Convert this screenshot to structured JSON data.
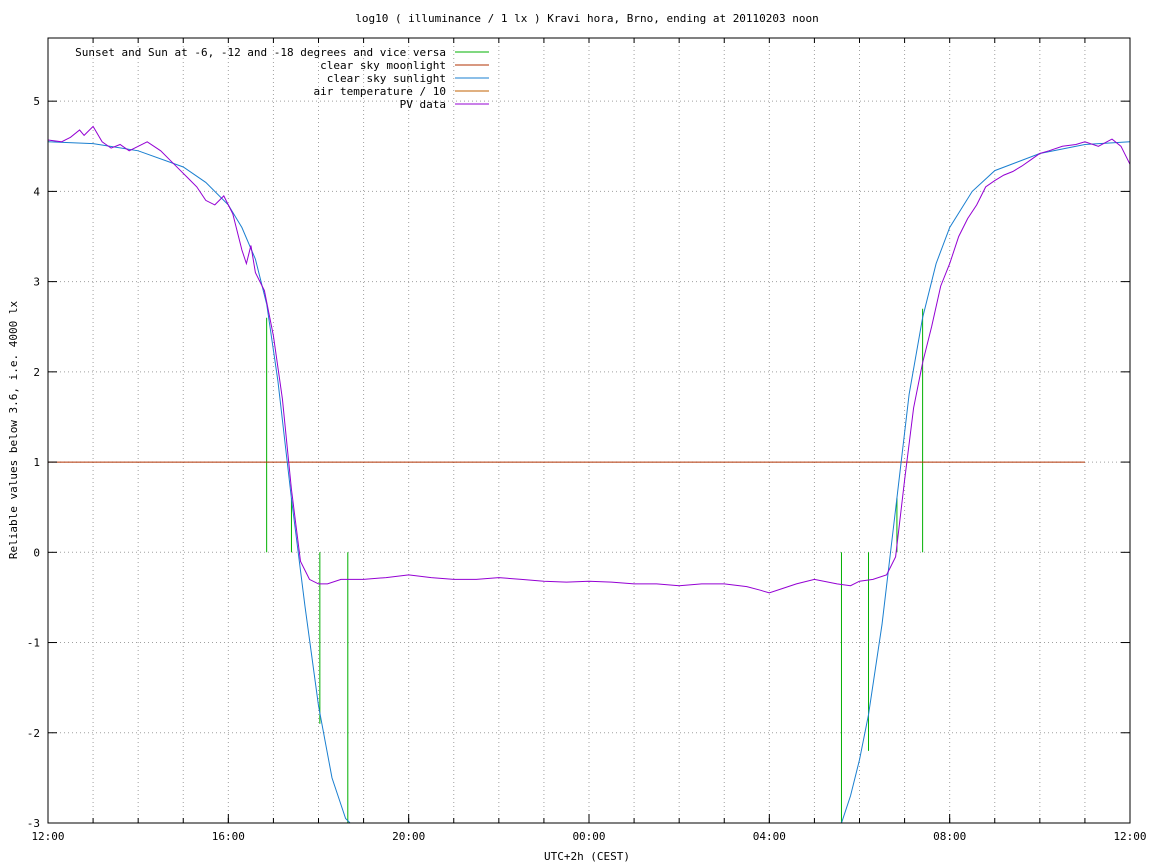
{
  "chart_data": {
    "type": "line",
    "title": "log10 ( illuminance / 1 lx ) Kravi hora, Brno, ending at 20110203 noon",
    "xlabel": "UTC+2h (CEST)",
    "ylabel": "Reliable values below 3.6, i.e. 4000 lx",
    "xlim": [
      12,
      36
    ],
    "ylim": [
      -3,
      5.7
    ],
    "x_ticks": [
      {
        "value": 12,
        "label": "12:00"
      },
      {
        "value": 16,
        "label": "16:00"
      },
      {
        "value": 20,
        "label": "20:00"
      },
      {
        "value": 24,
        "label": "00:00"
      },
      {
        "value": 28,
        "label": "04:00"
      },
      {
        "value": 32,
        "label": "08:00"
      },
      {
        "value": 36,
        "label": "12:00"
      }
    ],
    "y_ticks": [
      {
        "value": 5,
        "label": "5"
      },
      {
        "value": 4,
        "label": "4"
      },
      {
        "value": 3,
        "label": "3"
      },
      {
        "value": 2,
        "label": "2"
      },
      {
        "value": 1,
        "label": "1"
      },
      {
        "value": 0,
        "label": "0"
      },
      {
        "value": -1,
        "label": "-1"
      },
      {
        "value": -2,
        "label": "-2"
      },
      {
        "value": -3,
        "label": "-3"
      }
    ],
    "grid": true,
    "legend_position": "top-left",
    "series": [
      {
        "name": "Sunset and Sun at -6, -12 and -18 degrees and vice versa",
        "color": "#00b000",
        "style": "vlines",
        "lines": [
          {
            "x": 16.85,
            "y_top": 2.6,
            "y_bottom": 0
          },
          {
            "x": 17.4,
            "y_top": 0.6,
            "y_bottom": 0
          },
          {
            "x": 18.03,
            "y_top": -1.9,
            "y_bottom": 0
          },
          {
            "x": 18.65,
            "y_top": -3,
            "y_bottom": 0
          },
          {
            "x": 29.6,
            "y_top": -3,
            "y_bottom": 0
          },
          {
            "x": 30.2,
            "y_top": -2.2,
            "y_bottom": 0
          },
          {
            "x": 30.83,
            "y_top": 0.6,
            "y_bottom": 0
          },
          {
            "x": 31.4,
            "y_top": 2.7,
            "y_bottom": 0
          }
        ]
      },
      {
        "name": "clear sky moonlight",
        "color": "#b03000",
        "x": [
          12,
          35.0
        ],
        "y": [
          1,
          1
        ]
      },
      {
        "name": "clear sky sunlight",
        "color": "#1a7fd0",
        "x": [
          12.0,
          13.0,
          14.0,
          15.0,
          15.5,
          16.0,
          16.3,
          16.6,
          16.85,
          17.1,
          17.4,
          17.7,
          18.0,
          18.3,
          18.6,
          18.7,
          29.6,
          29.8,
          30.0,
          30.2,
          30.5,
          30.83,
          31.1,
          31.4,
          31.7,
          32.0,
          32.5,
          33.0,
          34.0,
          35.0,
          36.0
        ],
        "y": [
          4.55,
          4.53,
          4.45,
          4.27,
          4.1,
          3.85,
          3.6,
          3.25,
          2.75,
          1.9,
          0.6,
          -0.6,
          -1.7,
          -2.5,
          -2.95,
          -3.05,
          -3.05,
          -2.7,
          -2.3,
          -1.8,
          -0.8,
          0.6,
          1.75,
          2.6,
          3.2,
          3.6,
          4.0,
          4.23,
          4.42,
          4.52,
          4.55
        ]
      },
      {
        "name": "air temperature / 10",
        "color": "#c06000",
        "x": [],
        "y": []
      },
      {
        "name": "PV data",
        "color": "#9400d3",
        "x": [
          12.0,
          12.3,
          12.5,
          12.7,
          12.8,
          13.0,
          13.2,
          13.4,
          13.6,
          13.8,
          14.0,
          14.2,
          14.5,
          14.7,
          14.9,
          15.1,
          15.3,
          15.5,
          15.7,
          15.9,
          16.1,
          16.3,
          16.4,
          16.5,
          16.6,
          16.8,
          17.0,
          17.2,
          17.4,
          17.6,
          17.8,
          18.0,
          18.2,
          18.5,
          19.0,
          19.5,
          20.0,
          20.5,
          21.0,
          21.5,
          22.0,
          22.5,
          23.0,
          23.5,
          24.0,
          24.5,
          25.0,
          25.5,
          26.0,
          26.5,
          27.0,
          27.5,
          27.8,
          28.0,
          28.3,
          28.6,
          29.0,
          29.5,
          29.8,
          30.0,
          30.3,
          30.6,
          30.8,
          31.0,
          31.2,
          31.4,
          31.6,
          31.8,
          32.0,
          32.2,
          32.4,
          32.6,
          32.8,
          33.0,
          33.2,
          33.4,
          33.6,
          33.8,
          34.0,
          34.2,
          34.5,
          34.8,
          35.0,
          35.3,
          35.6,
          35.8,
          36.0
        ],
        "y": [
          4.57,
          4.55,
          4.6,
          4.68,
          4.62,
          4.72,
          4.55,
          4.48,
          4.52,
          4.45,
          4.5,
          4.55,
          4.45,
          4.35,
          4.25,
          4.15,
          4.05,
          3.9,
          3.85,
          3.95,
          3.75,
          3.35,
          3.2,
          3.4,
          3.1,
          2.9,
          2.4,
          1.7,
          0.7,
          -0.1,
          -0.3,
          -0.35,
          -0.35,
          -0.3,
          -0.3,
          -0.28,
          -0.25,
          -0.28,
          -0.3,
          -0.3,
          -0.28,
          -0.3,
          -0.32,
          -0.33,
          -0.32,
          -0.33,
          -0.35,
          -0.35,
          -0.37,
          -0.35,
          -0.35,
          -0.38,
          -0.42,
          -0.45,
          -0.4,
          -0.35,
          -0.3,
          -0.35,
          -0.37,
          -0.32,
          -0.3,
          -0.25,
          -0.05,
          0.8,
          1.6,
          2.1,
          2.5,
          2.95,
          3.2,
          3.5,
          3.7,
          3.85,
          4.05,
          4.12,
          4.18,
          4.22,
          4.28,
          4.35,
          4.42,
          4.45,
          4.5,
          4.52,
          4.55,
          4.5,
          4.58,
          4.5,
          4.3
        ]
      }
    ]
  }
}
